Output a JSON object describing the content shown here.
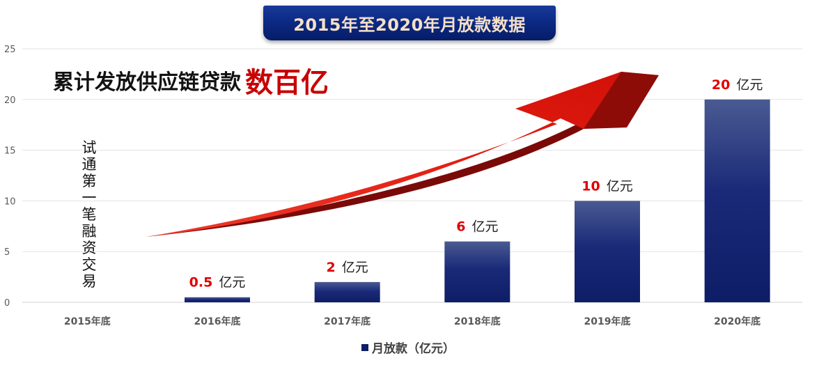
{
  "title": "2015年至2020年月放款数据",
  "headline": {
    "text_black": "累计发放供应链贷款",
    "text_red": "数百亿"
  },
  "vertical_note": "试通第一笔融资交易",
  "legend": {
    "label": "月放款（亿元）"
  },
  "colors": {
    "bar_top": "#4a5a92",
    "bar_bottom": "#0d1d66",
    "arrow_red": "#e01b10",
    "arrow_dark": "#7a0a08",
    "value_red": "#e00000",
    "banner": "#0c2a86"
  },
  "chart_data": {
    "type": "bar",
    "title": "2015年至2020年月放款数据",
    "categories": [
      "2015年底",
      "2016年底",
      "2017年底",
      "2018年底",
      "2019年底",
      "2020年底"
    ],
    "series": [
      {
        "name": "月放款（亿元）",
        "values": [
          0,
          0.5,
          2,
          6,
          10,
          20
        ]
      }
    ],
    "data_labels": [
      null,
      {
        "value": "0.5",
        "unit": "亿元"
      },
      {
        "value": "2",
        "unit": "亿元"
      },
      {
        "value": "6",
        "unit": "亿元"
      },
      {
        "value": "10",
        "unit": "亿元"
      },
      {
        "value": "20",
        "unit": "亿元"
      }
    ],
    "ylim": [
      0,
      25
    ],
    "yticks": [
      0,
      5,
      10,
      15,
      20,
      25
    ],
    "grid": true,
    "legend_position": "bottom",
    "xlabel": "",
    "ylabel": ""
  }
}
